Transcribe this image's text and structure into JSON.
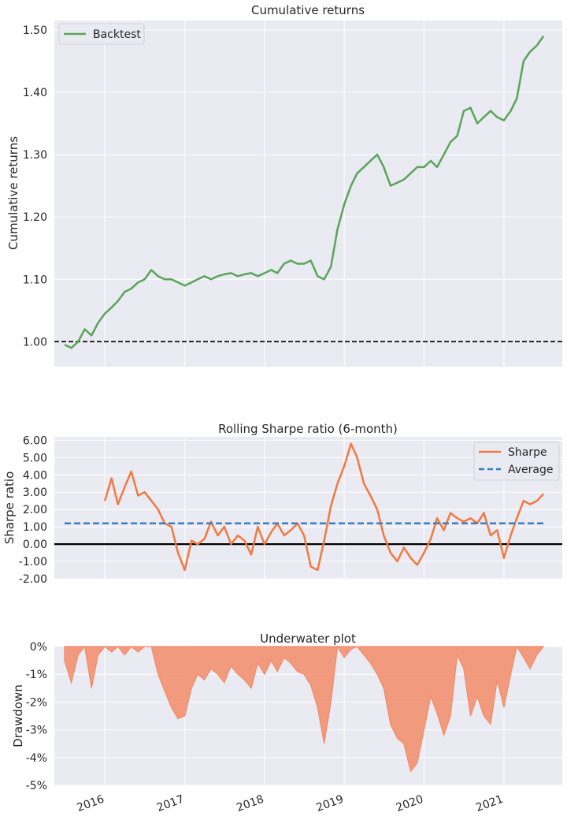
{
  "chart_data": [
    {
      "type": "line",
      "title": "Cumulative returns",
      "xlabel": "",
      "ylabel": "Cumulative returns",
      "ylim": [
        0.96,
        1.515
      ],
      "yticks": [
        1.0,
        1.1,
        1.2,
        1.3,
        1.4,
        1.5
      ],
      "ytick_labels": [
        "1.00",
        "1.10",
        "1.20",
        "1.30",
        "1.40",
        "1.50"
      ],
      "grid": true,
      "legend": "top-left",
      "reference_line": {
        "y": 1.0,
        "style": "dashed",
        "color": "#000000"
      },
      "series": [
        {
          "name": "Backtest",
          "color": "#5aa55a",
          "x": [
            "2015-07-01",
            "2015-08-01",
            "2015-09-01",
            "2015-10-01",
            "2015-11-01",
            "2015-12-01",
            "2016-01-01",
            "2016-02-01",
            "2016-03-01",
            "2016-04-01",
            "2016-05-01",
            "2016-06-01",
            "2016-07-01",
            "2016-08-01",
            "2016-09-01",
            "2016-10-01",
            "2016-11-01",
            "2016-12-01",
            "2017-01-01",
            "2017-02-01",
            "2017-03-01",
            "2017-04-01",
            "2017-05-01",
            "2017-06-01",
            "2017-07-01",
            "2017-08-01",
            "2017-09-01",
            "2017-10-01",
            "2017-11-01",
            "2017-12-01",
            "2018-01-01",
            "2018-02-01",
            "2018-03-01",
            "2018-04-01",
            "2018-05-01",
            "2018-06-01",
            "2018-07-01",
            "2018-08-01",
            "2018-09-01",
            "2018-10-01",
            "2018-11-01",
            "2018-12-01",
            "2019-01-01",
            "2019-02-01",
            "2019-03-01",
            "2019-04-01",
            "2019-05-01",
            "2019-06-01",
            "2019-07-01",
            "2019-08-01",
            "2019-09-01",
            "2019-10-01",
            "2019-11-01",
            "2019-12-01",
            "2020-01-01",
            "2020-02-01",
            "2020-03-01",
            "2020-04-01",
            "2020-05-01",
            "2020-06-01",
            "2020-07-01",
            "2020-08-01",
            "2020-09-01",
            "2020-10-01",
            "2020-11-01",
            "2020-12-01",
            "2021-01-01",
            "2021-02-01",
            "2021-03-01",
            "2021-04-01",
            "2021-05-01",
            "2021-06-01",
            "2021-07-01"
          ],
          "values": [
            0.995,
            0.99,
            1.0,
            1.02,
            1.01,
            1.03,
            1.045,
            1.055,
            1.065,
            1.08,
            1.085,
            1.095,
            1.1,
            1.115,
            1.105,
            1.1,
            1.1,
            1.095,
            1.09,
            1.095,
            1.1,
            1.105,
            1.1,
            1.105,
            1.108,
            1.11,
            1.105,
            1.108,
            1.11,
            1.105,
            1.11,
            1.115,
            1.11,
            1.125,
            1.13,
            1.125,
            1.125,
            1.13,
            1.105,
            1.1,
            1.12,
            1.18,
            1.22,
            1.25,
            1.27,
            1.28,
            1.29,
            1.3,
            1.28,
            1.25,
            1.255,
            1.26,
            1.27,
            1.28,
            1.28,
            1.29,
            1.28,
            1.3,
            1.32,
            1.33,
            1.37,
            1.375,
            1.35,
            1.36,
            1.37,
            1.36,
            1.355,
            1.37,
            1.39,
            1.45,
            1.465,
            1.475,
            1.49
          ]
        }
      ]
    },
    {
      "type": "line",
      "title": "Rolling Sharpe ratio (6-month)",
      "xlabel": "",
      "ylabel": "Sharpe ratio",
      "ylim": [
        -2.0,
        6.2
      ],
      "yticks": [
        -2.0,
        -1.0,
        0.0,
        1.0,
        2.0,
        3.0,
        4.0,
        5.0,
        6.0
      ],
      "ytick_labels": [
        "-2.00",
        "-1.00",
        "0.00",
        "1.00",
        "2.00",
        "3.00",
        "4.00",
        "5.00",
        "6.00"
      ],
      "grid": true,
      "legend": "top-right",
      "reference_line": {
        "y": 0.0,
        "style": "solid",
        "color": "#000000"
      },
      "series": [
        {
          "name": "Sharpe",
          "color": "#f27941",
          "x": [
            "2016-01-01",
            "2016-02-01",
            "2016-03-01",
            "2016-04-01",
            "2016-05-01",
            "2016-06-01",
            "2016-07-01",
            "2016-08-01",
            "2016-09-01",
            "2016-10-01",
            "2016-11-01",
            "2016-12-01",
            "2017-01-01",
            "2017-02-01",
            "2017-03-01",
            "2017-04-01",
            "2017-05-01",
            "2017-06-01",
            "2017-07-01",
            "2017-08-01",
            "2017-09-01",
            "2017-10-01",
            "2017-11-01",
            "2017-12-01",
            "2018-01-01",
            "2018-02-01",
            "2018-03-01",
            "2018-04-01",
            "2018-05-01",
            "2018-06-01",
            "2018-07-01",
            "2018-08-01",
            "2018-09-01",
            "2018-10-01",
            "2018-11-01",
            "2018-12-01",
            "2019-01-01",
            "2019-02-01",
            "2019-03-01",
            "2019-04-01",
            "2019-05-01",
            "2019-06-01",
            "2019-07-01",
            "2019-08-01",
            "2019-09-01",
            "2019-10-01",
            "2019-11-01",
            "2019-12-01",
            "2020-01-01",
            "2020-02-01",
            "2020-03-01",
            "2020-04-01",
            "2020-05-01",
            "2020-06-01",
            "2020-07-01",
            "2020-08-01",
            "2020-09-01",
            "2020-10-01",
            "2020-11-01",
            "2020-12-01",
            "2021-01-01",
            "2021-02-01",
            "2021-03-01",
            "2021-04-01",
            "2021-05-01",
            "2021-06-01",
            "2021-07-01"
          ],
          "values": [
            2.5,
            3.8,
            2.3,
            3.3,
            4.2,
            2.8,
            3.0,
            2.5,
            2.0,
            1.2,
            1.0,
            -0.5,
            -1.5,
            0.2,
            0.0,
            0.3,
            1.3,
            0.5,
            1.0,
            0.0,
            0.5,
            0.2,
            -0.6,
            1.0,
            0.0,
            0.7,
            1.2,
            0.5,
            0.8,
            1.2,
            0.5,
            -1.3,
            -1.5,
            0.2,
            2.2,
            3.5,
            4.5,
            5.8,
            5.0,
            3.5,
            2.8,
            2.0,
            0.5,
            -0.5,
            -1.0,
            -0.2,
            -0.8,
            -1.2,
            -0.5,
            0.3,
            1.5,
            0.8,
            1.8,
            1.5,
            1.3,
            1.5,
            1.2,
            1.8,
            0.5,
            0.8,
            -0.8,
            0.5,
            1.5,
            2.5,
            2.3,
            2.5,
            2.9
          ]
        },
        {
          "name": "Average",
          "color": "#3b7dbf",
          "style": "dashed",
          "x": [
            "2015-07-01",
            "2021-07-15"
          ],
          "values": [
            1.2,
            1.2
          ]
        }
      ]
    },
    {
      "type": "area",
      "title": "Underwater plot",
      "xlabel": "",
      "ylabel": "Drawdown",
      "ylim": [
        -5.0,
        0.0
      ],
      "yticks": [
        0,
        -1,
        -2,
        -3,
        -4,
        -5
      ],
      "ytick_labels": [
        "0%",
        "-1%",
        "-2%",
        "-3%",
        "-4%",
        "-5%"
      ],
      "grid": true,
      "xtick_labels": [
        "2016",
        "2017",
        "2018",
        "2019",
        "2020",
        "2021"
      ],
      "series": [
        {
          "color": "#f28c68",
          "x": [
            "2015-07-01",
            "2015-08-01",
            "2015-09-01",
            "2015-10-01",
            "2015-11-01",
            "2015-12-01",
            "2016-01-01",
            "2016-02-01",
            "2016-03-01",
            "2016-04-01",
            "2016-05-01",
            "2016-06-01",
            "2016-07-01",
            "2016-08-01",
            "2016-09-01",
            "2016-10-01",
            "2016-11-01",
            "2016-12-01",
            "2017-01-01",
            "2017-02-01",
            "2017-03-01",
            "2017-04-01",
            "2017-05-01",
            "2017-06-01",
            "2017-07-01",
            "2017-08-01",
            "2017-09-01",
            "2017-10-01",
            "2017-11-01",
            "2017-12-01",
            "2018-01-01",
            "2018-02-01",
            "2018-03-01",
            "2018-04-01",
            "2018-05-01",
            "2018-06-01",
            "2018-07-01",
            "2018-08-01",
            "2018-09-01",
            "2018-10-01",
            "2018-11-01",
            "2018-12-01",
            "2019-01-01",
            "2019-02-01",
            "2019-03-01",
            "2019-04-01",
            "2019-05-01",
            "2019-06-01",
            "2019-07-01",
            "2019-08-01",
            "2019-09-01",
            "2019-10-01",
            "2019-11-01",
            "2019-12-01",
            "2020-01-01",
            "2020-02-01",
            "2020-03-01",
            "2020-04-01",
            "2020-05-01",
            "2020-06-01",
            "2020-07-01",
            "2020-08-01",
            "2020-09-01",
            "2020-10-01",
            "2020-11-01",
            "2020-12-01",
            "2021-01-01",
            "2021-02-01",
            "2021-03-01",
            "2021-04-01",
            "2021-05-01",
            "2021-06-01",
            "2021-07-01"
          ],
          "values": [
            -0.5,
            -1.3,
            -0.3,
            0,
            -1.5,
            -0.3,
            0,
            -0.2,
            0,
            -0.3,
            0,
            -0.2,
            0,
            0,
            -1.0,
            -1.6,
            -2.2,
            -2.6,
            -2.5,
            -1.5,
            -1.0,
            -1.2,
            -0.8,
            -1.0,
            -1.3,
            -0.7,
            -1.0,
            -1.2,
            -1.5,
            -0.6,
            -1.0,
            -0.5,
            -0.9,
            -0.4,
            -0.6,
            -0.9,
            -1.0,
            -1.4,
            -2.2,
            -3.5,
            -2.0,
            0,
            -0.4,
            -0.1,
            0,
            -0.3,
            -0.6,
            -1.0,
            -1.5,
            -2.8,
            -3.3,
            -3.5,
            -4.5,
            -4.2,
            -3.0,
            -1.8,
            -2.4,
            -3.2,
            -2.5,
            -0.3,
            -0.8,
            -2.5,
            -1.8,
            -2.5,
            -2.8,
            -1.2,
            -2.2,
            -1.0,
            0,
            -0.4,
            -0.8,
            -0.3,
            0
          ]
        }
      ]
    }
  ]
}
